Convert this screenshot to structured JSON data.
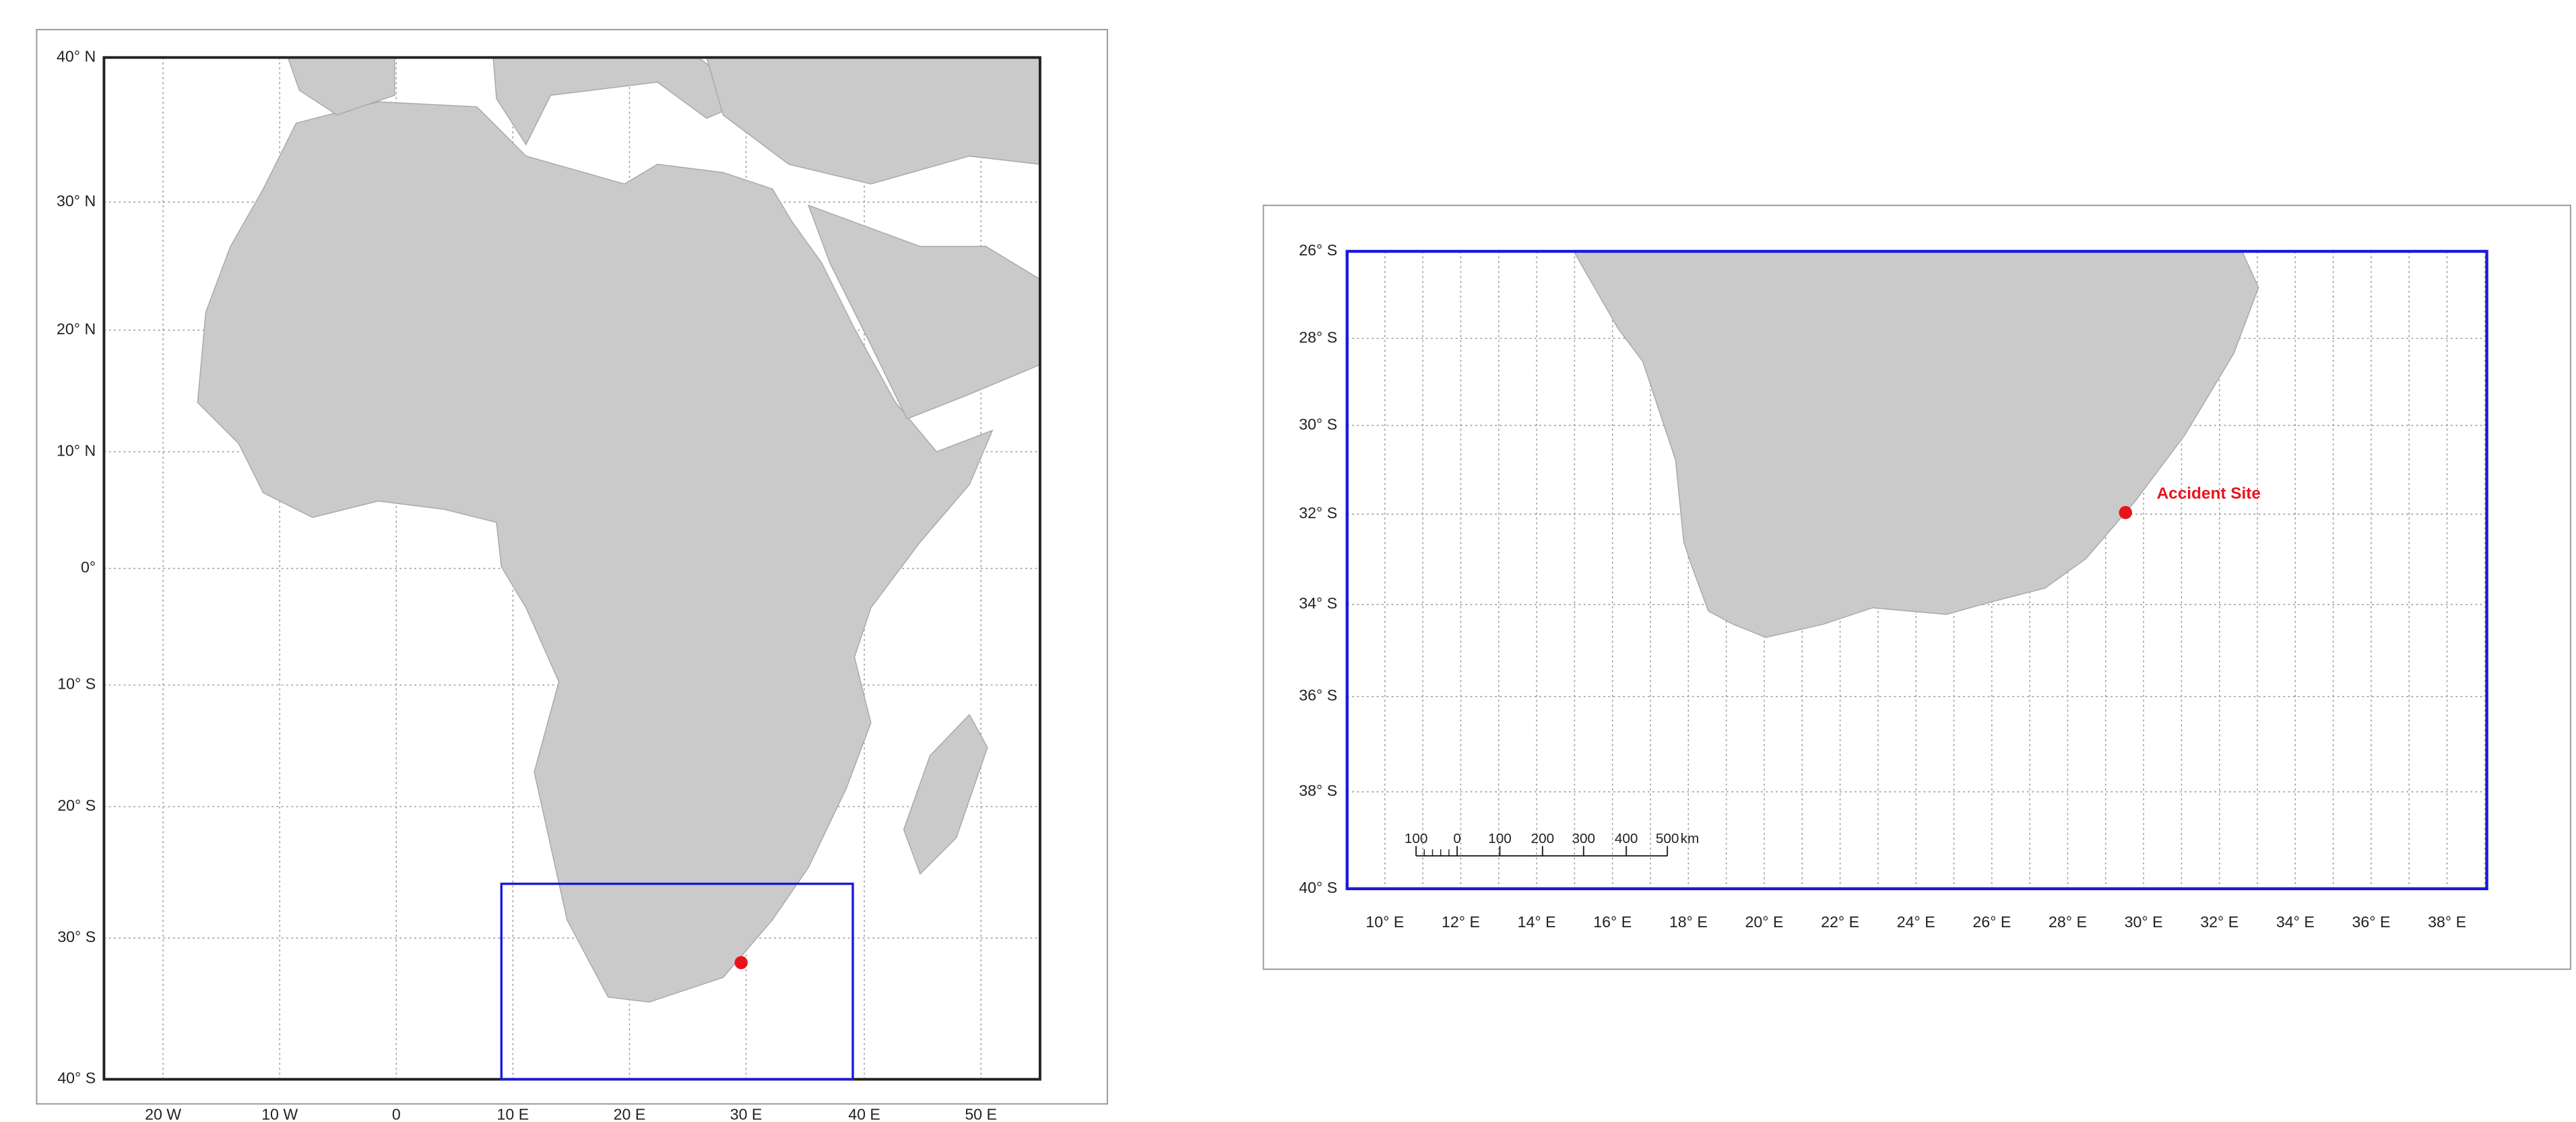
{
  "overview_map": {
    "lat_labels": [
      "40° N",
      "30° N",
      "20° N",
      "10° N",
      "0°",
      "10° S",
      "20° S",
      "30° S",
      "40° S"
    ],
    "lon_labels": [
      "20  W",
      "10  W",
      "0",
      "10  E",
      "20  E",
      "30  E",
      "40  E",
      "50  E"
    ]
  },
  "detail_map": {
    "lat_labels": [
      "26° S",
      "28° S",
      "30° S",
      "32° S",
      "34° S",
      "36° S",
      "38° S",
      "40° S"
    ],
    "lon_labels": [
      "10° E",
      "12° E",
      "14° E",
      "16° E",
      "18° E",
      "20° E",
      "22° E",
      "24° E",
      "26° E",
      "28° E",
      "30° E",
      "32° E",
      "34° E",
      "36° E",
      "38° E"
    ],
    "annotation": "Accident Site",
    "scale_bar": {
      "labels": [
        "100",
        "0",
        "100",
        "200",
        "300",
        "400",
        "500"
      ],
      "unit": "km"
    }
  }
}
